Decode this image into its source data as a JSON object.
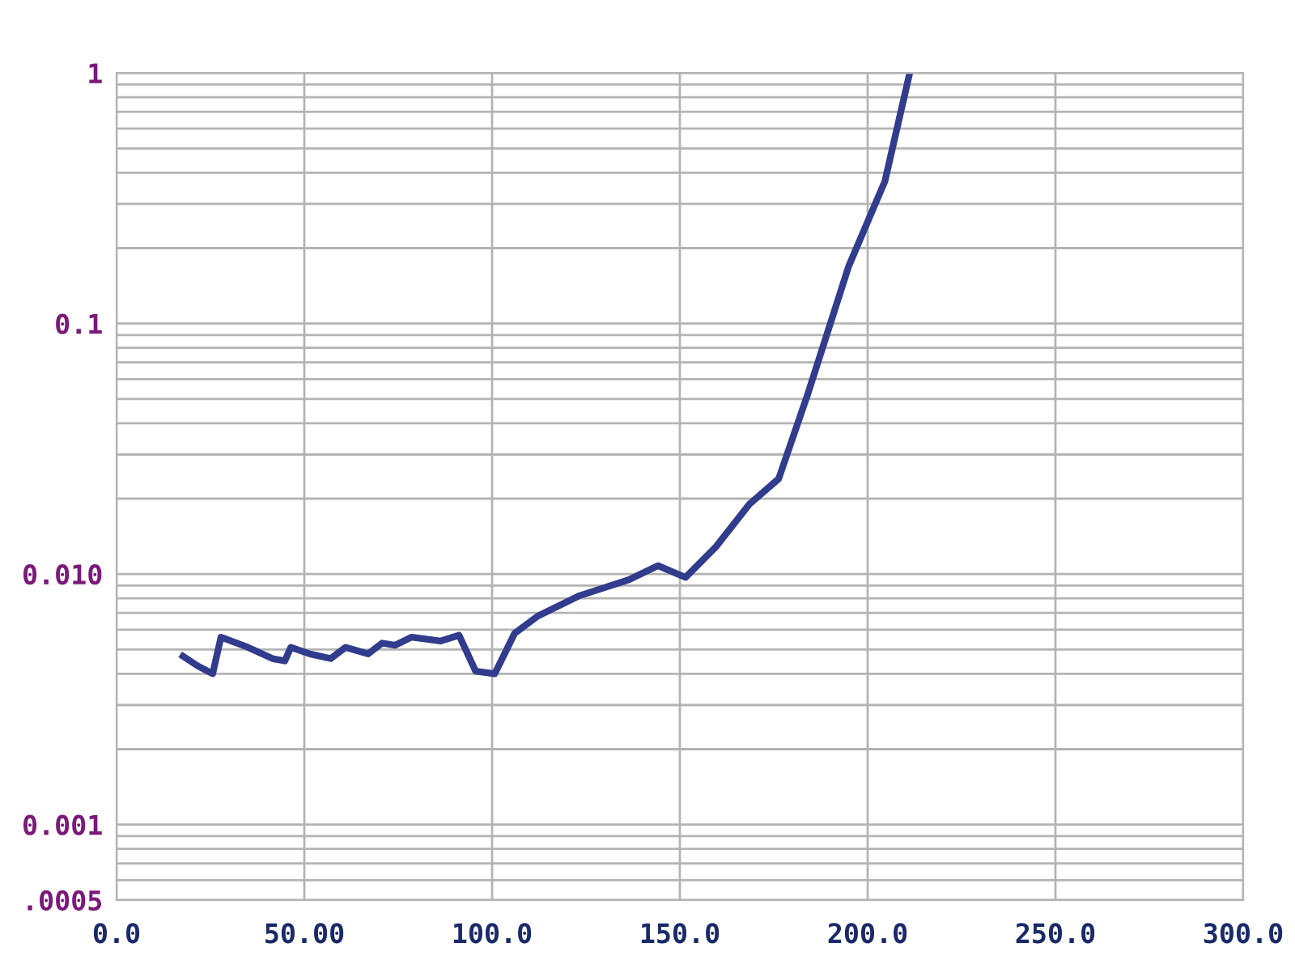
{
  "chart_data": {
    "type": "line",
    "log": "y",
    "grid": true,
    "marker": "none",
    "line_style": "solid",
    "x": [
      17.7,
      21.6,
      25.6,
      27.8,
      35,
      41.5,
      44.8,
      46.4,
      51.5,
      57,
      61,
      67,
      70.7,
      74.2,
      78.6,
      86.2,
      91.2,
      95.6,
      100.7,
      106,
      112.2,
      123.3,
      136.5,
      144.2,
      151.5,
      159.7,
      168.5,
      176.3,
      184,
      195,
      204.6,
      211.2
    ],
    "series": [
      {
        "color": "#323c8c",
        "values": [
          0.0047,
          0.0043,
          0.004,
          0.0056,
          0.0051,
          0.0046,
          0.0045,
          0.0051,
          0.0048,
          0.0046,
          0.0051,
          0.0048,
          0.0053,
          0.0052,
          0.0056,
          0.0054,
          0.0057,
          0.0041,
          0.004,
          0.0058,
          0.0068,
          0.0082,
          0.0095,
          0.0108,
          0.0097,
          0.0129,
          0.019,
          0.024,
          0.052,
          0.17,
          0.37,
          1.0
        ]
      }
    ],
    "xlim": [
      0,
      300
    ],
    "ylim": [
      0.0005,
      1
    ],
    "xticks": [
      {
        "value": 0,
        "label": "0.0"
      },
      {
        "value": 50,
        "label": "50.00"
      },
      {
        "value": 100,
        "label": "100.0"
      },
      {
        "value": 150,
        "label": "150.0"
      },
      {
        "value": 200,
        "label": "200.0"
      },
      {
        "value": 250,
        "label": "250.0"
      },
      {
        "value": 300,
        "label": "300.0"
      }
    ],
    "yticks": [
      {
        "value": 0.0005,
        "label": ".0005"
      },
      {
        "value": 0.0006,
        "label": null
      },
      {
        "value": 0.0007,
        "label": null
      },
      {
        "value": 0.0008,
        "label": null
      },
      {
        "value": 0.0009,
        "label": null
      },
      {
        "value": 0.001,
        "label": "0.001"
      },
      {
        "value": 0.002,
        "label": null
      },
      {
        "value": 0.003,
        "label": null
      },
      {
        "value": 0.004,
        "label": null
      },
      {
        "value": 0.005,
        "label": null
      },
      {
        "value": 0.006,
        "label": null
      },
      {
        "value": 0.007,
        "label": null
      },
      {
        "value": 0.008,
        "label": null
      },
      {
        "value": 0.009,
        "label": null
      },
      {
        "value": 0.01,
        "label": "0.010"
      },
      {
        "value": 0.02,
        "label": null
      },
      {
        "value": 0.03,
        "label": null
      },
      {
        "value": 0.04,
        "label": null
      },
      {
        "value": 0.05,
        "label": null
      },
      {
        "value": 0.06,
        "label": null
      },
      {
        "value": 0.07,
        "label": null
      },
      {
        "value": 0.08,
        "label": null
      },
      {
        "value": 0.09,
        "label": null
      },
      {
        "value": 0.1,
        "label": "0.1"
      },
      {
        "value": 0.2,
        "label": null
      },
      {
        "value": 0.3,
        "label": null
      },
      {
        "value": 0.4,
        "label": null
      },
      {
        "value": 0.5,
        "label": null
      },
      {
        "value": 0.6,
        "label": null
      },
      {
        "value": 0.7,
        "label": null
      },
      {
        "value": 0.8,
        "label": null
      },
      {
        "value": 0.9,
        "label": null
      },
      {
        "value": 1,
        "label": "1"
      }
    ]
  }
}
